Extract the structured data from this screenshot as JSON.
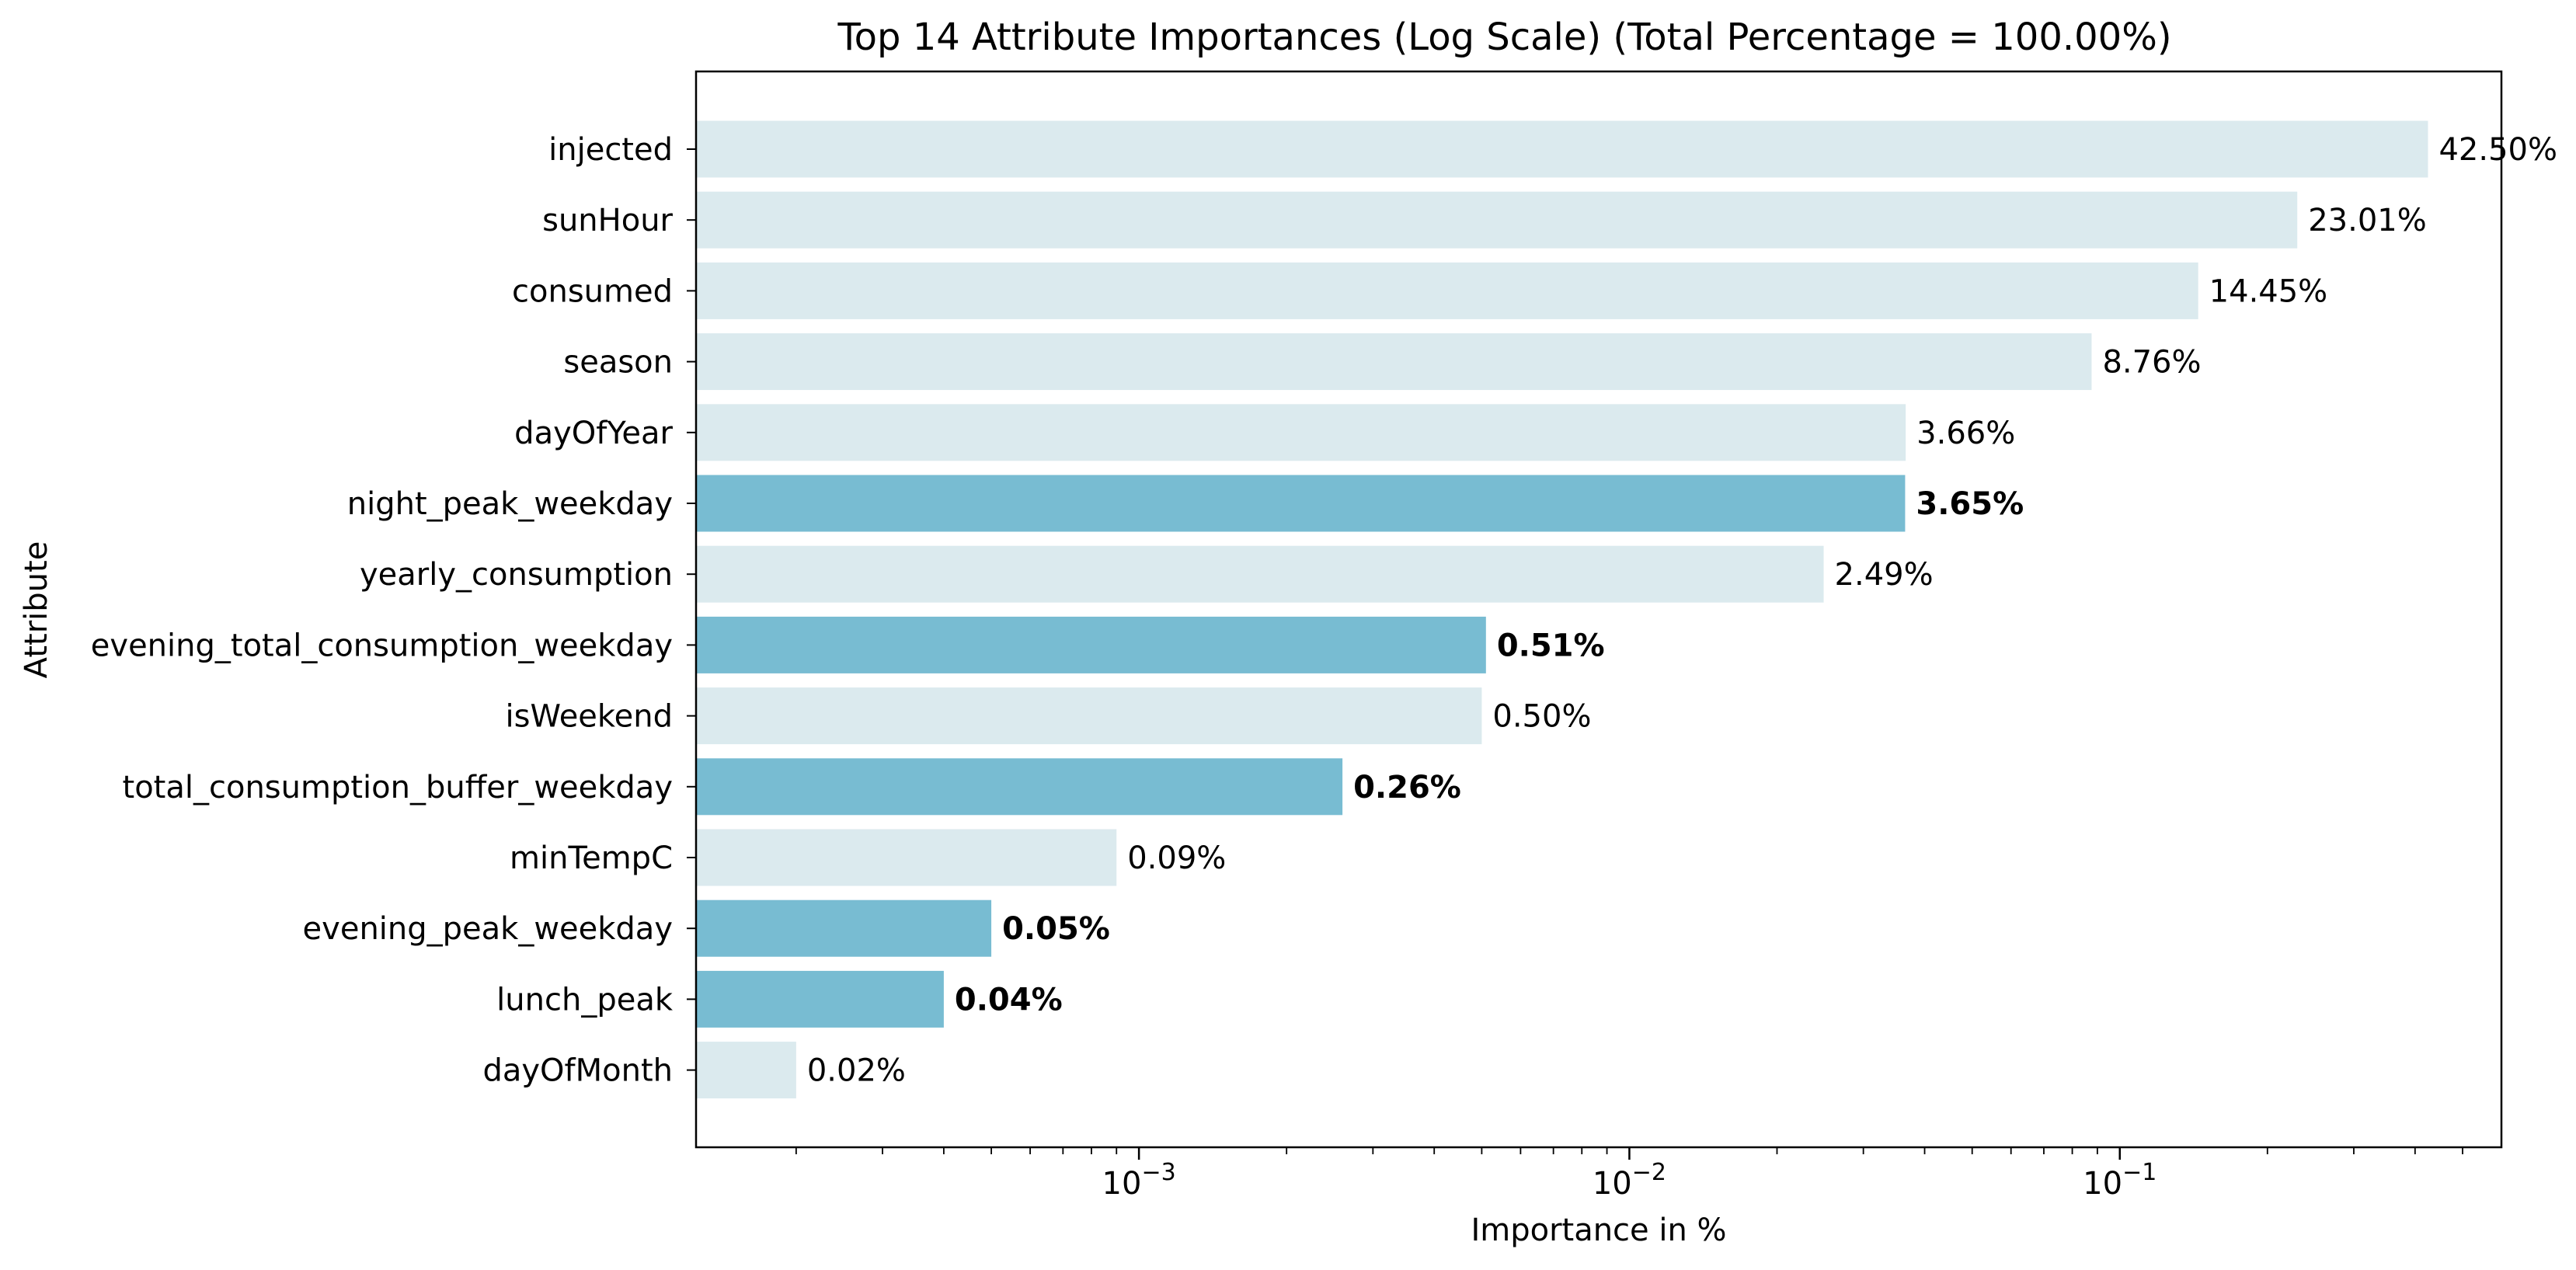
{
  "chart_data": {
    "type": "bar",
    "orientation": "horizontal",
    "title": "Top 14 Attribute Importances (Log Scale) (Total Percentage = 100.00%)",
    "xlabel": "Importance in %",
    "ylabel": "Attribute",
    "x_scale": "log",
    "xlim": [
      0.000125,
      0.6
    ],
    "grid": false,
    "colors": {
      "default": "#dbeaee",
      "highlight": "#78bcd2"
    },
    "x_ticks": [
      {
        "value": 0.001,
        "base": "10",
        "exponent": "−3"
      },
      {
        "value": 0.01,
        "base": "10",
        "exponent": "−2"
      },
      {
        "value": 0.1,
        "base": "10",
        "exponent": "−1"
      }
    ],
    "categories": [
      "injected",
      "sunHour",
      "consumed",
      "season",
      "dayOfYear",
      "night_peak_weekday",
      "yearly_consumption",
      "evening_total_consumption_weekday",
      "isWeekend",
      "total_consumption_buffer_weekday",
      "minTempC",
      "evening_peak_weekday",
      "lunch_peak",
      "dayOfMonth"
    ],
    "values": [
      0.425,
      0.2301,
      0.1445,
      0.0876,
      0.0366,
      0.0365,
      0.0249,
      0.0051,
      0.005,
      0.0026,
      0.0009,
      0.0005,
      0.0004,
      0.0002
    ],
    "value_labels": [
      "42.50%",
      "23.01%",
      "14.45%",
      "8.76%",
      "3.66%",
      "3.65%",
      "2.49%",
      "0.51%",
      "0.50%",
      "0.26%",
      "0.09%",
      "0.05%",
      "0.04%",
      "0.02%"
    ],
    "highlighted": [
      false,
      false,
      false,
      false,
      false,
      true,
      false,
      true,
      false,
      true,
      false,
      true,
      true,
      false
    ]
  }
}
